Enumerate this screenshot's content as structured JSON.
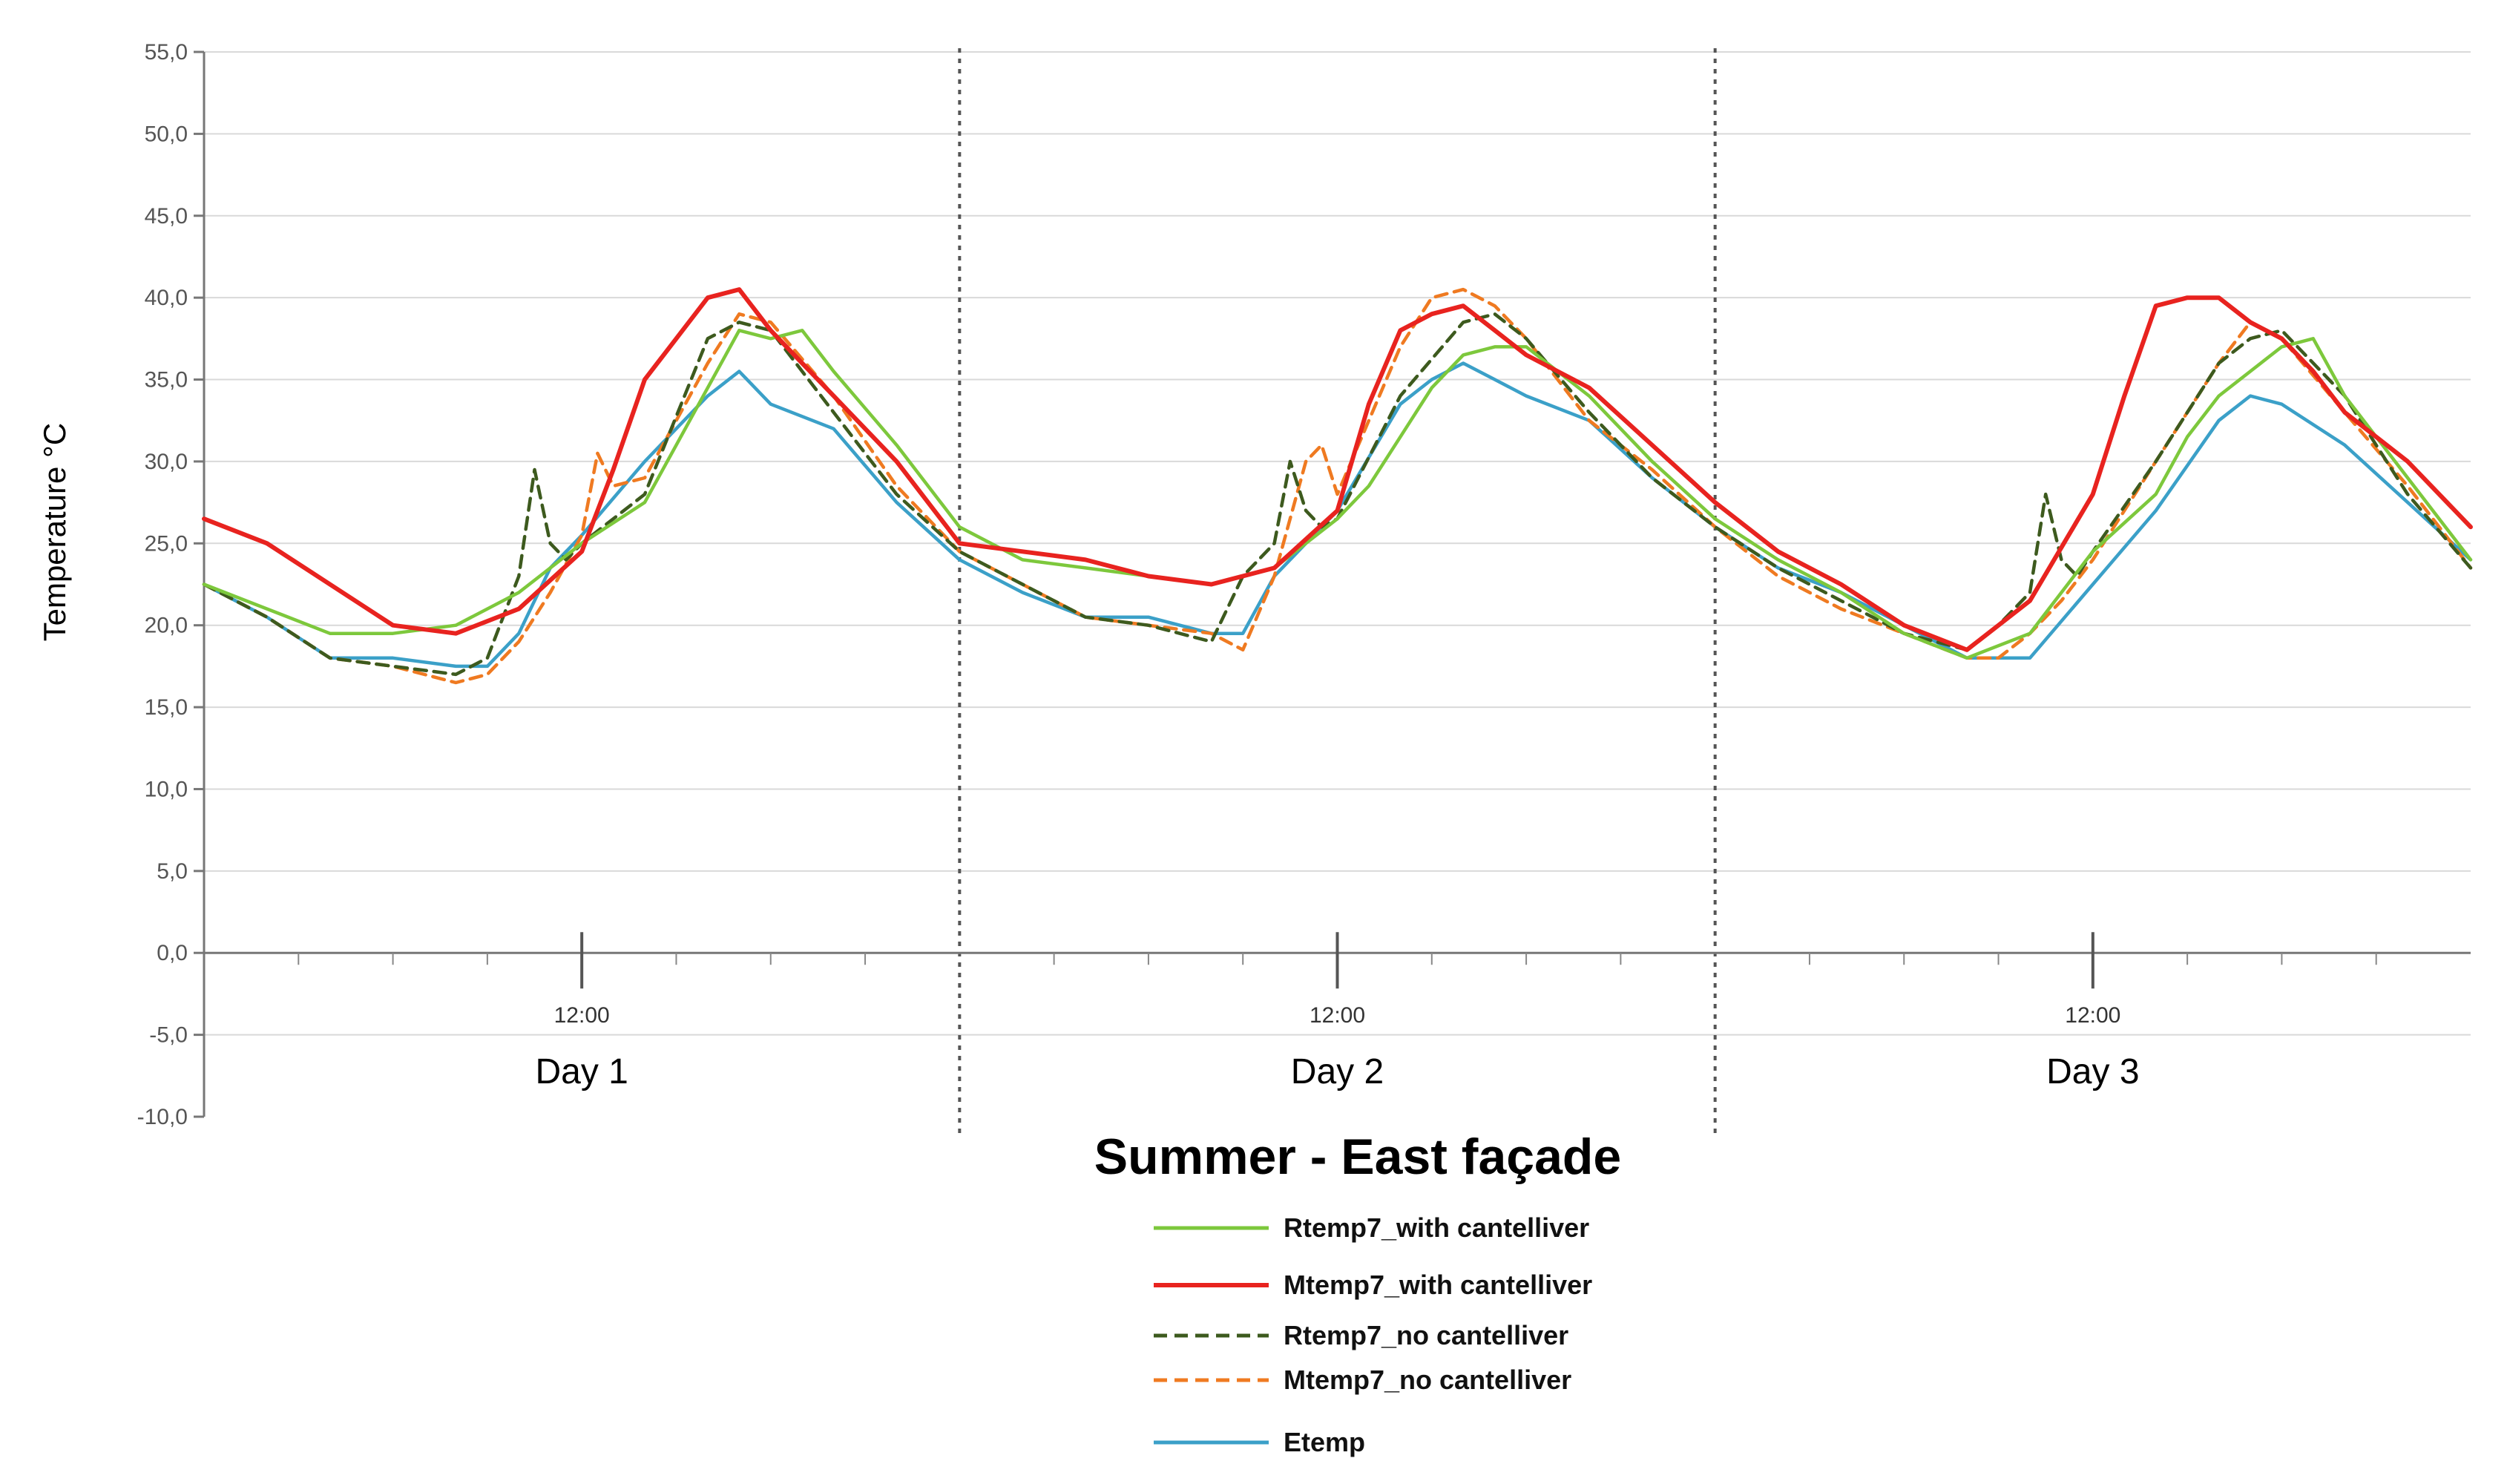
{
  "chart_data": {
    "type": "line",
    "title": "Summer - East façade",
    "ylabel": "Temperature °C",
    "xlabel": "",
    "ylim": [
      -10,
      55
    ],
    "yticks": [
      55,
      50,
      45,
      40,
      35,
      30,
      25,
      20,
      15,
      10,
      5,
      0,
      -5,
      -10
    ],
    "ytick_labels": [
      "55,0",
      "50,0",
      "45,0",
      "40,0",
      "35,0",
      "30,0",
      "25,0",
      "20,0",
      "15,0",
      "10,0",
      "5,0",
      "0,0",
      "-5,0",
      "-10,0"
    ],
    "xlim": [
      0,
      72
    ],
    "x_unit": "hours",
    "grid": true,
    "day_separators": [
      24,
      48
    ],
    "days": [
      {
        "label": "Day 1",
        "time_label": "12:00",
        "noon_hour": 12
      },
      {
        "label": "Day 2",
        "time_label": "12:00",
        "noon_hour": 36
      },
      {
        "label": "Day 3",
        "time_label": "12:00",
        "noon_hour": 60
      }
    ],
    "legend_position": "bottom-center",
    "series": [
      {
        "name": "Rtemp7_with cantelliver",
        "color": "#7dc83c",
        "dash": "solid",
        "x": [
          0,
          2,
          4,
          6,
          8,
          10,
          12,
          14,
          15,
          16,
          17,
          18,
          19,
          20,
          22,
          24,
          26,
          28,
          30,
          32,
          34,
          36,
          37,
          38,
          39,
          40,
          41,
          42,
          44,
          46,
          48,
          50,
          52,
          54,
          56,
          58,
          60,
          62,
          63,
          64,
          65,
          66,
          67,
          68,
          70,
          72
        ],
        "y": [
          22.5,
          21,
          19.5,
          19.5,
          20,
          22,
          25,
          27.5,
          31,
          34.5,
          38,
          37.5,
          38,
          35.5,
          31,
          26,
          24,
          23.5,
          23,
          22.5,
          23.5,
          26.5,
          28.5,
          31.5,
          34.5,
          36.5,
          37,
          37,
          34,
          30,
          26.5,
          24,
          22,
          19.5,
          18,
          19.5,
          24.5,
          28,
          31.5,
          34,
          35.5,
          37,
          37.5,
          34,
          29,
          24
        ]
      },
      {
        "name": "Mtemp7_with cantelliver",
        "color": "#e8231f",
        "dash": "solid",
        "x": [
          0,
          2,
          4,
          6,
          8,
          10,
          12,
          13,
          14,
          15,
          16,
          17,
          18,
          19,
          20,
          22,
          24,
          26,
          28,
          30,
          32,
          34,
          36,
          37,
          38,
          39,
          40,
          41,
          42,
          44,
          46,
          48,
          50,
          52,
          54,
          56,
          58,
          60,
          61,
          62,
          63,
          64,
          65,
          66,
          67,
          68,
          70,
          72
        ],
        "y": [
          26.5,
          25,
          22.5,
          20,
          19.5,
          21,
          24.5,
          29.5,
          35,
          37.5,
          40,
          40.5,
          38,
          36,
          34,
          30,
          25,
          24.5,
          24,
          23,
          22.5,
          23.5,
          27,
          33.5,
          38,
          39,
          39.5,
          38,
          36.5,
          34.5,
          31,
          27.5,
          24.5,
          22.5,
          20,
          18.5,
          21.5,
          28,
          34,
          39.5,
          40,
          40,
          38.5,
          37.5,
          35.5,
          33,
          30,
          26
        ]
      },
      {
        "name": "Rtemp7_no cantelliver",
        "color": "#3d5a1e",
        "dash": "dashed",
        "x": [
          0,
          2,
          4,
          6,
          8,
          9,
          10,
          10.5,
          11,
          11.5,
          12,
          14,
          16,
          17,
          18,
          20,
          22,
          24,
          26,
          28,
          30,
          32,
          33,
          34,
          34.5,
          35,
          35.5,
          36,
          38,
          40,
          41,
          42,
          44,
          46,
          48,
          50,
          52,
          54,
          56,
          57,
          58,
          58.5,
          59,
          59.5,
          60,
          62,
          64,
          65,
          66,
          68,
          70,
          72
        ],
        "y": [
          22.5,
          20.5,
          18,
          17.5,
          17,
          18,
          23,
          29.5,
          25,
          24,
          25,
          28,
          37.5,
          38.5,
          38,
          33,
          28,
          24.5,
          22.5,
          20.5,
          20,
          19,
          23,
          25,
          30,
          27,
          26,
          26.5,
          34,
          38.5,
          39,
          37.5,
          33,
          29,
          26,
          23.5,
          21.5,
          19.5,
          18.5,
          20,
          22,
          28,
          24,
          23,
          24.5,
          30,
          36,
          37.5,
          38,
          34,
          28,
          23.5
        ]
      },
      {
        "name": "Mtemp7_no cantelliver",
        "color": "#ef7a21",
        "dash": "dashed",
        "x": [
          0,
          2,
          4,
          6,
          8,
          9,
          10,
          11,
          12,
          12.5,
          13,
          14,
          16,
          17,
          18,
          20,
          22,
          24,
          26,
          28,
          30,
          32,
          33,
          34,
          35,
          35.5,
          36,
          38,
          39,
          40,
          41,
          42,
          44,
          46,
          48,
          50,
          52,
          54,
          56,
          57,
          58,
          59,
          60,
          62,
          64,
          65,
          66,
          68,
          70,
          72
        ],
        "y": [
          22.5,
          20.5,
          18,
          17.5,
          16.5,
          17,
          19,
          22,
          25.5,
          30.5,
          28.5,
          29,
          36,
          39,
          38.5,
          34,
          28.5,
          24.5,
          22.5,
          20.5,
          20,
          19.5,
          18.5,
          23,
          30,
          31,
          28,
          37,
          40,
          40.5,
          39.5,
          37.5,
          32.5,
          29.5,
          26,
          23,
          21,
          19.5,
          18,
          18,
          19.5,
          21.5,
          24,
          30,
          36,
          38.5,
          37.5,
          33,
          28.5,
          23.5
        ]
      },
      {
        "name": "Etemp",
        "color": "#3ba0c8",
        "dash": "solid",
        "x": [
          0,
          2,
          4,
          6,
          8,
          9,
          10,
          11,
          12,
          14,
          16,
          17,
          18,
          20,
          22,
          24,
          26,
          28,
          30,
          32,
          33,
          34,
          36,
          38,
          39,
          40,
          41,
          42,
          44,
          46,
          48,
          50,
          52,
          54,
          56,
          58,
          60,
          62,
          64,
          65,
          66,
          68,
          70,
          72
        ],
        "y": [
          22.5,
          20.5,
          18,
          18,
          17.5,
          17.5,
          19.5,
          23.5,
          25.5,
          30,
          34,
          35.5,
          33.5,
          32,
          27.5,
          24,
          22,
          20.5,
          20.5,
          19.5,
          19.5,
          23,
          27,
          33.5,
          35,
          36,
          35,
          34,
          32.5,
          29,
          26,
          23.5,
          22,
          20,
          18,
          18,
          22.5,
          27,
          32.5,
          34,
          33.5,
          31,
          27.5,
          24
        ]
      }
    ]
  }
}
